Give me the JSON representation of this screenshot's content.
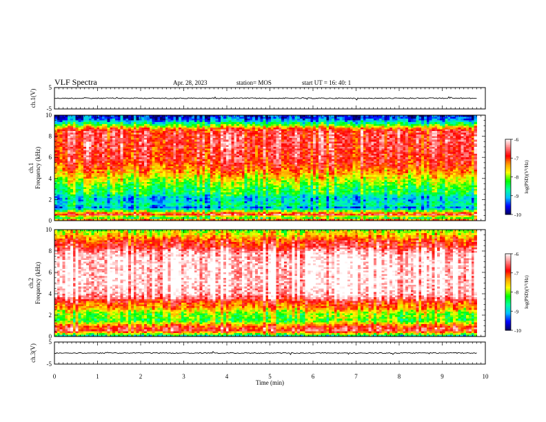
{
  "header": {
    "title": "VLF Spectra",
    "date": "Apr. 28, 2023",
    "station": "station= MOS",
    "start": "start  UT =   16: 40: 1"
  },
  "chart_data": {
    "type": "heatmap",
    "x_axis": {
      "label": "Time  (min)",
      "range": [
        0,
        10
      ],
      "ticks": [
        "0",
        "1",
        "2",
        "3",
        "4",
        "5",
        "6",
        "7",
        "8",
        "9",
        "10"
      ]
    },
    "panels": [
      {
        "name": "ch1-waveform",
        "type": "line",
        "ylabel": "ch.1(V)",
        "yrange": [
          -5,
          5
        ],
        "yticks": [
          "5",
          "-5"
        ],
        "trace_level": 0,
        "trace_end_min": 9.8
      },
      {
        "name": "ch1-spectrogram",
        "type": "heatmap",
        "ylabel": "ch.1\nFrequency (kHz)",
        "yrange": [
          0,
          10
        ],
        "yticks": [
          "0",
          "2",
          "4",
          "6",
          "8",
          "10"
        ],
        "data_end_min": 9.8,
        "profile_log_psd": [
          [
            0.0,
            -6.8
          ],
          [
            0.3,
            -8.5
          ],
          [
            0.6,
            -6.6
          ],
          [
            0.9,
            -8.0
          ],
          [
            1.2,
            -9.3
          ],
          [
            1.5,
            -8.6
          ],
          [
            1.8,
            -8.9
          ],
          [
            2.1,
            -9.0
          ],
          [
            2.4,
            -8.7
          ],
          [
            2.7,
            -8.3
          ],
          [
            3.0,
            -8.4
          ],
          [
            3.3,
            -8.2
          ],
          [
            3.6,
            -8.0
          ],
          [
            3.9,
            -7.8
          ],
          [
            4.2,
            -7.6
          ],
          [
            4.5,
            -7.4
          ],
          [
            5.0,
            -7.1
          ],
          [
            5.5,
            -6.9
          ],
          [
            6.0,
            -6.8
          ],
          [
            6.5,
            -6.8
          ],
          [
            7.0,
            -6.7
          ],
          [
            7.5,
            -6.7
          ],
          [
            8.0,
            -6.7
          ],
          [
            8.5,
            -6.8
          ],
          [
            8.8,
            -7.3
          ],
          [
            9.0,
            -8.0
          ],
          [
            9.3,
            -8.7
          ],
          [
            9.6,
            -9.4
          ],
          [
            10.0,
            -9.6
          ]
        ]
      },
      {
        "name": "ch2-spectrogram",
        "type": "heatmap",
        "ylabel": "ch.2\nFrequency (kHz)",
        "yrange": [
          0,
          10
        ],
        "yticks": [
          "0",
          "2",
          "4",
          "6",
          "8",
          "10"
        ],
        "data_end_min": 9.8,
        "profile_log_psd": [
          [
            0.0,
            -9.0
          ],
          [
            0.3,
            -7.6
          ],
          [
            0.6,
            -6.6
          ],
          [
            0.9,
            -6.9
          ],
          [
            1.2,
            -7.5
          ],
          [
            1.5,
            -8.2
          ],
          [
            1.8,
            -8.0
          ],
          [
            2.1,
            -8.0
          ],
          [
            2.4,
            -7.7
          ],
          [
            2.7,
            -7.2
          ],
          [
            3.0,
            -7.1
          ],
          [
            3.3,
            -6.8
          ],
          [
            3.6,
            -6.4
          ],
          [
            4.0,
            -6.1
          ],
          [
            5.0,
            -6.0
          ],
          [
            6.0,
            -6.0
          ],
          [
            7.0,
            -6.0
          ],
          [
            7.6,
            -6.1
          ],
          [
            8.0,
            -6.3
          ],
          [
            8.4,
            -6.7
          ],
          [
            8.8,
            -6.8
          ],
          [
            9.2,
            -7.2
          ],
          [
            9.6,
            -7.6
          ],
          [
            10.0,
            -8.0
          ]
        ]
      },
      {
        "name": "ch3-waveform",
        "type": "line",
        "ylabel": "ch.3(V)",
        "yrange": [
          -5,
          5
        ],
        "yticks": [
          "5",
          "-5"
        ],
        "trace_level": 0,
        "trace_end_min": 9.8
      }
    ],
    "colorbar": {
      "label": "log(PSD)(V²/Hz)",
      "range": [
        -10,
        -6
      ],
      "ticks": [
        "-6",
        "-7",
        "-8",
        "-9",
        "-10"
      ],
      "colors": [
        "#000060",
        "#0000ff",
        "#00c0ff",
        "#00ffa0",
        "#00ff00",
        "#ffff00",
        "#ffa000",
        "#ff0000",
        "#ff8080",
        "#ffffff"
      ]
    }
  }
}
